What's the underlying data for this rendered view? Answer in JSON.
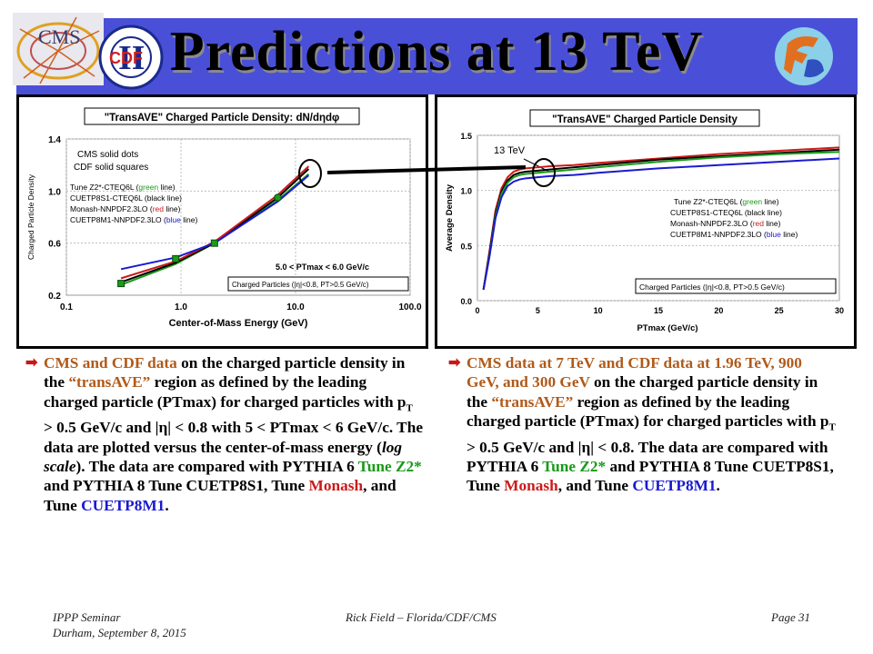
{
  "slide": {
    "title": "Predictions at 13 TeV",
    "logos": {
      "left_text": "CMS",
      "left2_text": "CDF",
      "roman": "II"
    }
  },
  "left_chart_data": {
    "type": "line",
    "title": "\"TransAVE\" Charged Particle Density: dN/dηdφ",
    "xlabel": "Center-of-Mass Energy (GeV)",
    "ylabel": "Charged Particle Density",
    "xscale": "log",
    "xlim": [
      0.1,
      100.0
    ],
    "ylim": [
      0.2,
      1.4
    ],
    "x_ticks": [
      "0.1",
      "1.0",
      "10.0",
      "100.0"
    ],
    "y_ticks": [
      "0.2",
      "0.6",
      "1.0",
      "1.4"
    ],
    "annot_data": [
      "CMS solid dots",
      "CDF solid squares"
    ],
    "legend": [
      {
        "prefix": "Tune Z2*-CTEQ6L (",
        "color_word": "green",
        "suffix": " line)",
        "color": "#1a9a1a"
      },
      {
        "prefix": "CUETP8S1-CTEQ6L (black line)",
        "color_word": "",
        "suffix": "",
        "color": "#000000"
      },
      {
        "prefix": "Monash-NNPDF2.3LO (",
        "color_word": "red",
        "suffix": " line)",
        "color": "#cc1a1a"
      },
      {
        "prefix": "CUETP8M1-NNPDF2.3LO (",
        "color_word": "blue",
        "suffix": " line)",
        "color": "#1a1ad0"
      }
    ],
    "range_label": "5.0 < PTmax < 6.0 GeV/c",
    "cuts_label": "Charged Particles (|η|<0.8, PT>0.5 GeV/c)",
    "series": [
      {
        "name": "Tune Z2*-CTEQ6L",
        "color": "#1a9a1a",
        "x": [
          0.3,
          0.9,
          1.96,
          7.0,
          13.0
        ],
        "y": [
          0.28,
          0.44,
          0.6,
          0.93,
          1.13
        ]
      },
      {
        "name": "CUETP8S1-CTEQ6L",
        "color": "#000000",
        "x": [
          0.3,
          0.9,
          1.96,
          7.0,
          13.0
        ],
        "y": [
          0.3,
          0.45,
          0.6,
          0.95,
          1.17
        ]
      },
      {
        "name": "Monash-NNPDF2.3LO",
        "color": "#cc1a1a",
        "x": [
          0.3,
          0.9,
          1.96,
          7.0,
          13.0
        ],
        "y": [
          0.33,
          0.46,
          0.61,
          0.97,
          1.19
        ]
      },
      {
        "name": "CUETP8M1-NNPDF2.3LO",
        "color": "#1a1ad0",
        "x": [
          0.3,
          0.9,
          1.96,
          7.0,
          13.0
        ],
        "y": [
          0.4,
          0.49,
          0.6,
          0.92,
          1.12
        ]
      }
    ],
    "data_points": [
      {
        "label": "CDF",
        "x": 0.3,
        "y": 0.29,
        "color": "#1a9a1a"
      },
      {
        "label": "CDF",
        "x": 0.9,
        "y": 0.48,
        "color": "#1a9a1a"
      },
      {
        "label": "CDF",
        "x": 1.96,
        "y": 0.6,
        "color": "#1a9a1a"
      },
      {
        "label": "CMS",
        "x": 7.0,
        "y": 0.95,
        "color": "#1a9a1a"
      }
    ]
  },
  "chart_data": {
    "type": "line",
    "title": "\"TransAVE\" Charged Particle Density",
    "xlabel": "PTmax (GeV/c)",
    "ylabel": "Average Density",
    "xlim": [
      0,
      30
    ],
    "ylim": [
      0.0,
      1.5
    ],
    "x_ticks": [
      "0",
      "5",
      "10",
      "15",
      "20",
      "25",
      "30"
    ],
    "y_ticks": [
      "0.0",
      "0.5",
      "1.0",
      "1.5"
    ],
    "energy_label": "13 TeV",
    "legend": [
      {
        "prefix": "Tune Z2*-CTEQ6L (",
        "color_word": "green",
        "suffix": " line)",
        "color": "#1a9a1a"
      },
      {
        "prefix": "CUETP8S1-CTEQ6L (black line)",
        "color_word": "",
        "suffix": "",
        "color": "#000000"
      },
      {
        "prefix": "Monash-NNPDF2.3LO (",
        "color_word": "red",
        "suffix": " line)",
        "color": "#cc1a1a"
      },
      {
        "prefix": "CUETP8M1-NNPDF2.3LO (",
        "color_word": "blue",
        "suffix": " line)",
        "color": "#1a1ad0"
      }
    ],
    "cuts_label": "Charged Particles (|η|<0.8, PT>0.5 GeV/c)",
    "x": [
      0.5,
      1,
      1.5,
      2,
      2.5,
      3,
      3.5,
      4,
      5,
      6,
      8,
      10,
      15,
      20,
      25,
      30
    ],
    "series": [
      {
        "name": "Monash-NNPDF2.3LO",
        "color": "#cc1a1a",
        "values": [
          0.1,
          0.45,
          0.82,
          1.02,
          1.12,
          1.17,
          1.19,
          1.2,
          1.21,
          1.22,
          1.23,
          1.25,
          1.29,
          1.33,
          1.36,
          1.39
        ]
      },
      {
        "name": "CUETP8S1-CTEQ6L",
        "color": "#000000",
        "values": [
          0.1,
          0.43,
          0.79,
          0.99,
          1.09,
          1.14,
          1.16,
          1.17,
          1.18,
          1.19,
          1.21,
          1.23,
          1.28,
          1.31,
          1.34,
          1.37
        ]
      },
      {
        "name": "Tune Z2*-CTEQ6L",
        "color": "#1a9a1a",
        "values": [
          0.1,
          0.41,
          0.77,
          0.97,
          1.07,
          1.12,
          1.14,
          1.15,
          1.16,
          1.17,
          1.19,
          1.21,
          1.26,
          1.3,
          1.33,
          1.35
        ]
      },
      {
        "name": "CUETP8M1-NNPDF2.3LO",
        "color": "#1a1ad0",
        "values": [
          0.1,
          0.4,
          0.75,
          0.94,
          1.04,
          1.08,
          1.1,
          1.11,
          1.12,
          1.13,
          1.14,
          1.16,
          1.2,
          1.23,
          1.26,
          1.29
        ]
      }
    ]
  },
  "left_text": {
    "p1": "CMS and CDF data",
    "p2": " on the charged particle density in the ",
    "p3": "“transAVE”",
    "p4": " region as defined by the leading charged particle (PTmax) for charged particles with p",
    "p4sub": "T",
    "p5": " > 0.5 GeV/c  and |η| < 0.8 with 5 < PTmax < 6 GeV/c. The data are plotted versus the center-of-mass energy (",
    "p6": "log scale",
    "p7": "). The data are compared with PYTHIA 6 ",
    "p8": "Tune Z2*",
    "p9": " and PYTHIA 8 Tune CUETP8S1, Tune ",
    "p10": "Monash",
    "p11": ", and Tune ",
    "p12": "CUETP8M1",
    "p13": "."
  },
  "right_text": {
    "p1": "CMS data at 7 TeV and CDF data at 1.96 TeV, 900 GeV, and 300 GeV",
    "p2": " on the charged particle density in the ",
    "p3": "“transAVE”",
    "p4": " region as defined by the leading charged particle (PTmax) for charged particles with p",
    "p4sub": "T",
    "p5": " > 0.5 GeV/c and |η| < 0.8. The data are compared with PYTHIA 6 ",
    "p6": "Tune Z2*",
    "p7": " and PYTHIA 8 Tune CUETP8S1, Tune ",
    "p8": "Monash",
    "p9": ", and Tune ",
    "p10": "CUETP8M1",
    "p11": "."
  },
  "footer": {
    "left1": "IPPP Seminar",
    "left2": "Durham, September 8, 2015",
    "center": "Rick Field – Florida/CDF/CMS",
    "right": "Page 31"
  },
  "colors": {
    "title_band": "#4a4fd8",
    "arrow": "#c81818",
    "plot_bg": "#ffffff"
  }
}
